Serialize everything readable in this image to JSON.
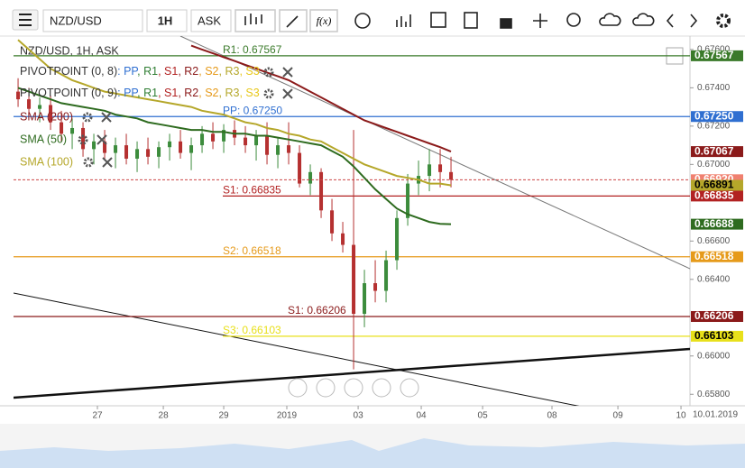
{
  "toolbar": {
    "symbol": "NZD/USD",
    "interval": "1H",
    "price_side": "ASK"
  },
  "chart_data": {
    "type": "candlestick",
    "title": "NZD/USD, 1H, ASK",
    "pivot_sets": [
      "PIVOTPOINT (0, 8)",
      "PIVOTPOINT (0, 9)"
    ],
    "pivot_items": [
      {
        "name": ": PP",
        "color": "#2f6fd1"
      },
      {
        "name": ", R1",
        "color": "#2e7d32"
      },
      {
        "name": ", S1",
        "color": "#b22222"
      },
      {
        "name": ", R2",
        "color": "#8b1a1a"
      },
      {
        "name": ", S2",
        "color": "#e69a1a"
      },
      {
        "name": ", R3",
        "color": "#b5a72a"
      },
      {
        "name": ", S3",
        "color": "#e8c81a"
      }
    ],
    "xlim": [
      -0.42,
      62.08
    ],
    "xticks": [
      {
        "value": 7.33,
        "label": "27"
      },
      {
        "value": 13.42,
        "label": "28"
      },
      {
        "value": 19,
        "label": "29"
      },
      {
        "value": 24.83,
        "label": "2019"
      },
      {
        "value": 31.42,
        "label": "03"
      },
      {
        "value": 37.25,
        "label": "04"
      },
      {
        "value": 42.92,
        "label": "05"
      },
      {
        "value": 49.33,
        "label": "08"
      },
      {
        "value": 55.42,
        "label": "09"
      },
      {
        "value": 61.25,
        "label": "10"
      }
    ],
    "date_label": "10.01.2019",
    "ylim": [
      0.6574,
      0.6767
    ],
    "yticks": [
      {
        "value": 0.676,
        "label": "0.67600"
      },
      {
        "value": 0.674,
        "label": "0.67400"
      },
      {
        "value": 0.672,
        "label": "0.67200"
      },
      {
        "value": 0.67,
        "label": "0.67000"
      },
      {
        "value": 0.666,
        "label": "0.66600"
      },
      {
        "value": 0.664,
        "label": "0.66400"
      },
      {
        "value": 0.66,
        "label": "0.66000"
      },
      {
        "value": 0.658,
        "label": "0.65800"
      }
    ],
    "up_color": "#3c8c3c",
    "down_color": "#b53030",
    "candles": [
      {
        "o": 0.6738,
        "h": 0.6745,
        "l": 0.673,
        "c": 0.6734
      },
      {
        "o": 0.6734,
        "h": 0.674,
        "l": 0.6726,
        "c": 0.6729
      },
      {
        "o": 0.6729,
        "h": 0.6735,
        "l": 0.6722,
        "c": 0.6731
      },
      {
        "o": 0.6731,
        "h": 0.6736,
        "l": 0.6718,
        "c": 0.6722
      },
      {
        "o": 0.6722,
        "h": 0.6728,
        "l": 0.6712,
        "c": 0.6716
      },
      {
        "o": 0.6716,
        "h": 0.6724,
        "l": 0.6708,
        "c": 0.6719
      },
      {
        "o": 0.6719,
        "h": 0.6722,
        "l": 0.6704,
        "c": 0.6708
      },
      {
        "o": 0.6708,
        "h": 0.6716,
        "l": 0.67,
        "c": 0.6712
      },
      {
        "o": 0.6712,
        "h": 0.6718,
        "l": 0.6702,
        "c": 0.6706
      },
      {
        "o": 0.6706,
        "h": 0.6714,
        "l": 0.6698,
        "c": 0.671
      },
      {
        "o": 0.671,
        "h": 0.6716,
        "l": 0.67,
        "c": 0.6703
      },
      {
        "o": 0.6703,
        "h": 0.6712,
        "l": 0.6696,
        "c": 0.6708
      },
      {
        "o": 0.6708,
        "h": 0.6714,
        "l": 0.67,
        "c": 0.6704
      },
      {
        "o": 0.6704,
        "h": 0.6712,
        "l": 0.6698,
        "c": 0.6709
      },
      {
        "o": 0.6709,
        "h": 0.6716,
        "l": 0.6702,
        "c": 0.6712
      },
      {
        "o": 0.6712,
        "h": 0.6718,
        "l": 0.6703,
        "c": 0.6706
      },
      {
        "o": 0.6706,
        "h": 0.6714,
        "l": 0.6697,
        "c": 0.671
      },
      {
        "o": 0.671,
        "h": 0.672,
        "l": 0.6706,
        "c": 0.6716
      },
      {
        "o": 0.6716,
        "h": 0.6722,
        "l": 0.6708,
        "c": 0.6712
      },
      {
        "o": 0.6712,
        "h": 0.6721,
        "l": 0.6706,
        "c": 0.6718
      },
      {
        "o": 0.6718,
        "h": 0.6723,
        "l": 0.671,
        "c": 0.6714
      },
      {
        "o": 0.6714,
        "h": 0.672,
        "l": 0.6706,
        "c": 0.671
      },
      {
        "o": 0.671,
        "h": 0.6718,
        "l": 0.6702,
        "c": 0.6715
      },
      {
        "o": 0.6715,
        "h": 0.6722,
        "l": 0.67,
        "c": 0.6705
      },
      {
        "o": 0.6705,
        "h": 0.6714,
        "l": 0.6698,
        "c": 0.671
      },
      {
        "o": 0.671,
        "h": 0.6722,
        "l": 0.67,
        "c": 0.6706
      },
      {
        "o": 0.6706,
        "h": 0.671,
        "l": 0.6688,
        "c": 0.669
      },
      {
        "o": 0.669,
        "h": 0.67,
        "l": 0.6684,
        "c": 0.6696
      },
      {
        "o": 0.6696,
        "h": 0.6698,
        "l": 0.6672,
        "c": 0.6676
      },
      {
        "o": 0.6676,
        "h": 0.6682,
        "l": 0.666,
        "c": 0.6664
      },
      {
        "o": 0.6664,
        "h": 0.667,
        "l": 0.6654,
        "c": 0.6658
      },
      {
        "o": 0.6658,
        "h": 0.6718,
        "l": 0.6593,
        "c": 0.6622
      },
      {
        "o": 0.6622,
        "h": 0.6645,
        "l": 0.6615,
        "c": 0.6638
      },
      {
        "o": 0.6638,
        "h": 0.665,
        "l": 0.6628,
        "c": 0.6634
      },
      {
        "o": 0.6634,
        "h": 0.6655,
        "l": 0.6628,
        "c": 0.665
      },
      {
        "o": 0.665,
        "h": 0.6676,
        "l": 0.6645,
        "c": 0.6672
      },
      {
        "o": 0.6672,
        "h": 0.6695,
        "l": 0.6668,
        "c": 0.669
      },
      {
        "o": 0.669,
        "h": 0.6702,
        "l": 0.6684,
        "c": 0.6694
      },
      {
        "o": 0.6694,
        "h": 0.6708,
        "l": 0.6686,
        "c": 0.67
      },
      {
        "o": 0.67,
        "h": 0.6708,
        "l": 0.6688,
        "c": 0.6696
      },
      {
        "o": 0.6696,
        "h": 0.6704,
        "l": 0.6688,
        "c": 0.6692
      }
    ],
    "last_label": "0.66920",
    "last_color": "#f08070",
    "series": [
      {
        "name": "SMA (200)",
        "color": "#8b1a1a",
        "values": [
          null,
          null,
          null,
          null,
          null,
          null,
          null,
          null,
          null,
          null,
          null,
          null,
          null,
          null,
          null,
          null,
          0.6762,
          0.676,
          0.6758,
          0.6756,
          0.6754,
          0.6752,
          0.675,
          0.6748,
          0.6746,
          0.6744,
          0.6741,
          0.6738,
          0.6735,
          0.6732,
          0.6729,
          0.6726,
          0.6723,
          0.6721,
          0.6719,
          0.6717,
          0.6715,
          0.6713,
          0.6711,
          0.6709,
          0.67067
        ]
      },
      {
        "name": "SMA (50)",
        "color": "#2e6b1f",
        "values": [
          0.674,
          0.6738,
          0.6736,
          0.6734,
          0.6732,
          0.6731,
          0.673,
          0.6729,
          0.6728,
          0.6726,
          0.6725,
          0.6724,
          0.6722,
          0.6721,
          0.672,
          0.6719,
          0.6718,
          0.6718,
          0.6717,
          0.6717,
          0.6716,
          0.6716,
          0.6715,
          0.6715,
          0.6714,
          0.6713,
          0.6712,
          0.6711,
          0.671,
          0.6707,
          0.6704,
          0.6699,
          0.6693,
          0.6687,
          0.6682,
          0.6677,
          0.6674,
          0.6672,
          0.667,
          0.6669,
          0.66688
        ]
      },
      {
        "name": "SMA (100)",
        "color": "#b5a72a",
        "values": [
          0.6765,
          0.676,
          0.6755,
          0.675,
          0.6747,
          0.6744,
          0.6742,
          0.674,
          0.6738,
          0.6737,
          0.6736,
          0.6735,
          0.6734,
          0.6733,
          0.6732,
          0.6731,
          0.673,
          0.6728,
          0.6727,
          0.6726,
          0.6724,
          0.6722,
          0.6721,
          0.6719,
          0.6718,
          0.6716,
          0.6715,
          0.6713,
          0.6712,
          0.6709,
          0.6706,
          0.6703,
          0.67,
          0.6698,
          0.6696,
          0.6694,
          0.6693,
          0.6692,
          0.669,
          0.669,
          0.66891
        ]
      }
    ],
    "levels": [
      {
        "label": "R1: 0.67567",
        "value": 0.67567,
        "value_label": "0.67567",
        "color": "#3a7a2a"
      },
      {
        "label": "PP: 0.67250",
        "value": 0.6725,
        "value_label": "0.67250",
        "color": "#2f6fd1"
      },
      {
        "label": "S1: 0.66835",
        "value": 0.66835,
        "value_label": "0.66835",
        "color": "#b22222"
      },
      {
        "label": "S2: 0.66518",
        "value": 0.66518,
        "value_label": "0.66518",
        "color": "#e69a1a"
      },
      {
        "label": "S1: 0.66206",
        "value": 0.66206,
        "value_label": "0.66206",
        "color": "#8b1a1a"
      },
      {
        "label": "S3: 0.66103",
        "value": 0.66103,
        "value_label": "0.66103",
        "color": "#e8e01a"
      }
    ]
  }
}
